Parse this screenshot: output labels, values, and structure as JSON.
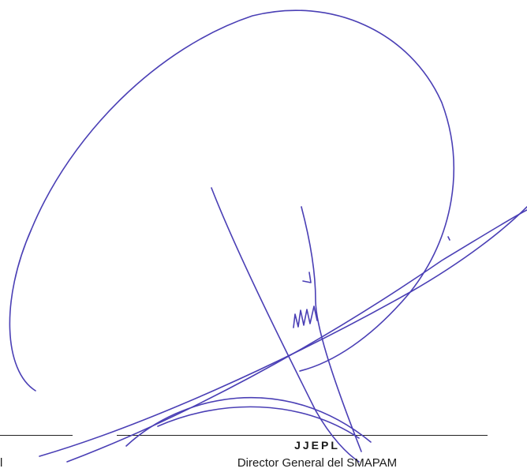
{
  "signature_block": {
    "name": "JJEPL",
    "role": "Director General del SMAPAM",
    "left_edge_text": "l",
    "ink_color": "#4a3fb5"
  }
}
